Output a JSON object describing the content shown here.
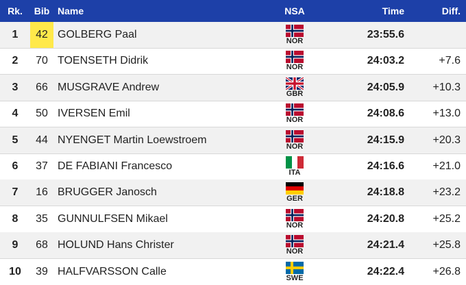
{
  "table": {
    "headers": [
      "Rk.",
      "Bib",
      "Name",
      "NSA",
      "Time",
      "Diff."
    ],
    "rows": [
      {
        "rank": "1",
        "bib": "42",
        "name": "GOLBERG Paal",
        "nsa": "NOR",
        "time": "23:55.6"
      },
      {
        "rank": "2",
        "bib": "70",
        "name": "TOENSETH Didrik",
        "nsa": "NOR",
        "time": "24:03.2",
        "diff": "+7.6"
      },
      {
        "rank": "3",
        "bib": "66",
        "name": "MUSGRAVE Andrew",
        "nsa": "GBR",
        "time": "24:05.9",
        "diff": "+10.3"
      },
      {
        "rank": "4",
        "bib": "50",
        "name": "IVERSEN Emil",
        "nsa": "NOR",
        "time": "24:08.6",
        "diff": "+13.0"
      },
      {
        "rank": "5",
        "bib": "44",
        "name": "NYENGET Martin Loewstroem",
        "nsa": "NOR",
        "time": "24:15.9",
        "diff": "+20.3"
      },
      {
        "rank": "6",
        "bib": "37",
        "name": "DE FABIANI Francesco",
        "nsa": "ITA",
        "time": "24:16.6",
        "diff": "+21.0"
      },
      {
        "rank": "7",
        "bib": "16",
        "name": "BRUGGER Janosch",
        "nsa": "GER",
        "time": "24:18.8",
        "diff": "+23.2"
      },
      {
        "rank": "8",
        "bib": "35",
        "name": "GUNNULFSEN Mikael",
        "nsa": "NOR",
        "time": "24:20.8",
        "diff": "+25.2"
      },
      {
        "rank": "9",
        "bib": "68",
        "name": "HOLUND Hans Christer",
        "nsa": "NOR",
        "time": "24:21.4",
        "diff": "+25.8"
      },
      {
        "rank": "10",
        "bib": "39",
        "name": "HALFVARSSON Calle",
        "nsa": "SWE",
        "time": "24:22.4",
        "diff": "+26.8"
      }
    ]
  }
}
